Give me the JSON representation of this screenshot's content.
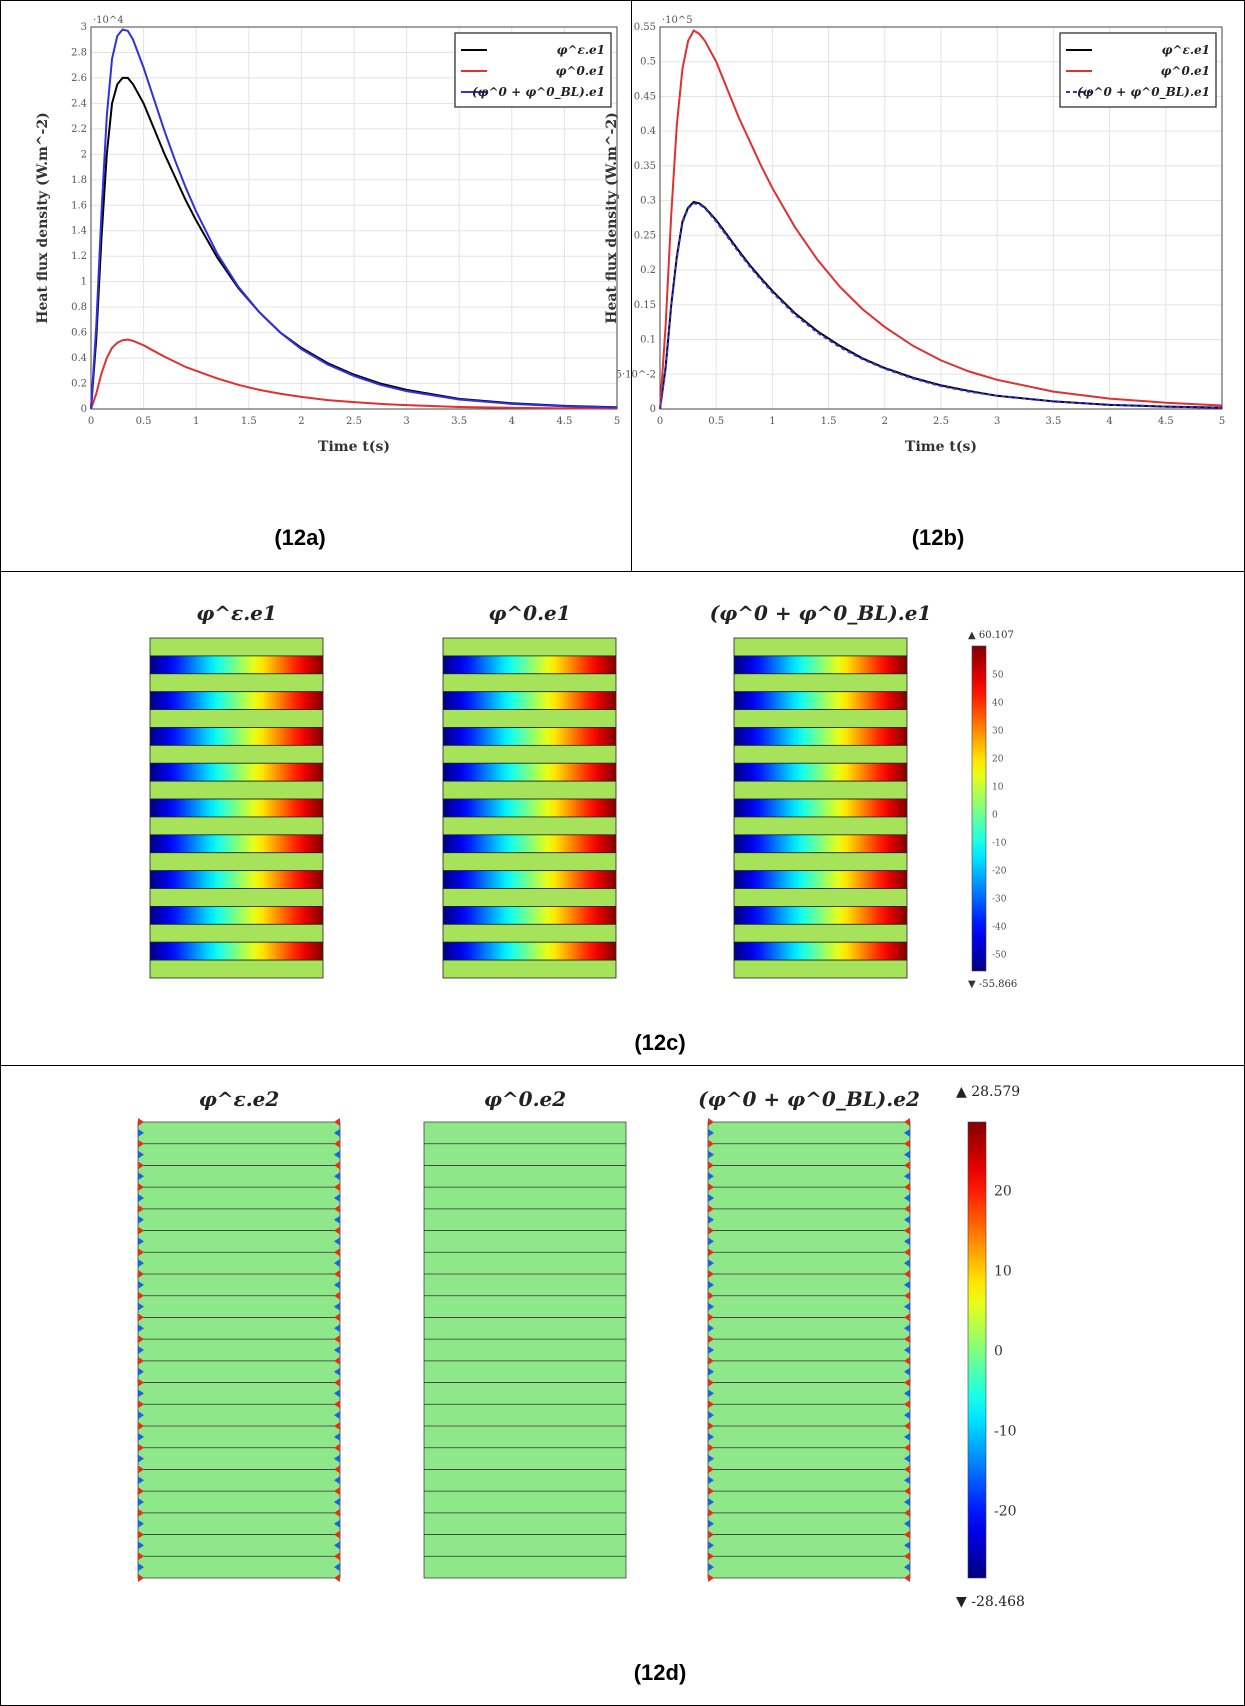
{
  "chart_data": [
    {
      "id": "12a",
      "type": "line",
      "caption": "(12a)",
      "xlabel": "Time t(s)",
      "ylabel": "Heat flux density (W.m^-2)",
      "y_multiplier": "·10^4",
      "xlim": [
        0,
        5
      ],
      "ylim": [
        0,
        3
      ],
      "x_ticks": [
        "0",
        "0.5",
        "1",
        "1.5",
        "2",
        "2.5",
        "3",
        "3.5",
        "4",
        "4.5",
        "5"
      ],
      "y_ticks": [
        "0",
        "0.2",
        "0.4",
        "0.6",
        "0.8",
        "1",
        "1.2",
        "1.4",
        "1.6",
        "1.8",
        "2",
        "2.2",
        "2.4",
        "2.6",
        "2.8",
        "3"
      ],
      "legend_position": "top-right",
      "grid": true,
      "x": [
        0,
        0.05,
        0.1,
        0.15,
        0.2,
        0.25,
        0.3,
        0.35,
        0.4,
        0.5,
        0.6,
        0.7,
        0.8,
        0.9,
        1.0,
        1.2,
        1.4,
        1.6,
        1.8,
        2.0,
        2.25,
        2.5,
        2.75,
        3.0,
        3.5,
        4.0,
        4.5,
        5.0
      ],
      "series": [
        {
          "name": "φ^ε.e1",
          "color": "#000000",
          "style": "solid",
          "values": [
            0,
            0.55,
            1.35,
            2.0,
            2.4,
            2.55,
            2.6,
            2.6,
            2.55,
            2.4,
            2.2,
            2.0,
            1.82,
            1.64,
            1.48,
            1.19,
            0.95,
            0.76,
            0.6,
            0.48,
            0.36,
            0.27,
            0.2,
            0.15,
            0.08,
            0.045,
            0.025,
            0.014
          ]
        },
        {
          "name": "φ^0.e1",
          "color": "#e03030",
          "style": "solid",
          "values": [
            0,
            0.12,
            0.28,
            0.4,
            0.48,
            0.52,
            0.54,
            0.545,
            0.535,
            0.5,
            0.455,
            0.41,
            0.37,
            0.33,
            0.3,
            0.24,
            0.19,
            0.15,
            0.12,
            0.095,
            0.07,
            0.054,
            0.04,
            0.03,
            0.016,
            0.009,
            0.005,
            0.003
          ]
        },
        {
          "name": "(φ^0 + φ^0_BL).e1",
          "color": "#3030e0",
          "style": "solid",
          "values": [
            0,
            0.65,
            1.55,
            2.3,
            2.75,
            2.93,
            2.98,
            2.97,
            2.9,
            2.68,
            2.43,
            2.18,
            1.95,
            1.74,
            1.55,
            1.22,
            0.96,
            0.76,
            0.6,
            0.47,
            0.35,
            0.26,
            0.19,
            0.14,
            0.075,
            0.04,
            0.022,
            0.012
          ]
        }
      ]
    },
    {
      "id": "12b",
      "type": "line",
      "caption": "(12b)",
      "xlabel": "Time t(s)",
      "ylabel": "Heat flux density (W.m^-2)",
      "y_multiplier": "·10^5",
      "xlim": [
        0,
        5
      ],
      "ylim": [
        0,
        0.55
      ],
      "x_ticks": [
        "0",
        "0.5",
        "1",
        "1.5",
        "2",
        "2.5",
        "3",
        "3.5",
        "4",
        "4.5",
        "5"
      ],
      "y_ticks": [
        "0",
        "5·10^-2",
        "0.1",
        "0.15",
        "0.2",
        "0.25",
        "0.3",
        "0.35",
        "0.4",
        "0.45",
        "0.5",
        "0.55"
      ],
      "legend_position": "top-right",
      "grid": true,
      "x": [
        0,
        0.05,
        0.1,
        0.15,
        0.2,
        0.25,
        0.3,
        0.35,
        0.4,
        0.5,
        0.6,
        0.7,
        0.8,
        0.9,
        1.0,
        1.2,
        1.4,
        1.6,
        1.8,
        2.0,
        2.25,
        2.5,
        2.75,
        3.0,
        3.5,
        4.0,
        4.5,
        5.0
      ],
      "series": [
        {
          "name": "φ^ε.e1",
          "color": "#000000",
          "style": "solid",
          "values": [
            0,
            0.06,
            0.15,
            0.22,
            0.27,
            0.29,
            0.298,
            0.296,
            0.29,
            0.272,
            0.25,
            0.228,
            0.207,
            0.188,
            0.17,
            0.138,
            0.112,
            0.091,
            0.073,
            0.059,
            0.045,
            0.034,
            0.026,
            0.019,
            0.011,
            0.006,
            0.0035,
            0.002
          ]
        },
        {
          "name": "φ^0.e1",
          "color": "#e03030",
          "style": "solid",
          "values": [
            0,
            0.12,
            0.28,
            0.41,
            0.49,
            0.53,
            0.545,
            0.54,
            0.53,
            0.5,
            0.46,
            0.42,
            0.385,
            0.35,
            0.318,
            0.262,
            0.215,
            0.176,
            0.144,
            0.118,
            0.091,
            0.07,
            0.054,
            0.042,
            0.025,
            0.015,
            0.009,
            0.005
          ]
        },
        {
          "name": "(φ^0 + φ^0_BL).e1",
          "color": "#3030e0",
          "style": "dashed",
          "values": [
            0,
            0.058,
            0.148,
            0.218,
            0.268,
            0.289,
            0.296,
            0.295,
            0.289,
            0.27,
            0.248,
            0.226,
            0.205,
            0.186,
            0.168,
            0.136,
            0.11,
            0.089,
            0.072,
            0.058,
            0.044,
            0.033,
            0.025,
            0.019,
            0.011,
            0.006,
            0.0035,
            0.002
          ]
        }
      ]
    },
    {
      "id": "12c",
      "type": "heatmap",
      "caption": "(12c)",
      "panels": [
        "φ^ε.e1",
        "φ^0.e1",
        "(φ^0 + φ^0_BL).e1"
      ],
      "colorbar": {
        "max_label": "▲ 60.107",
        "min_label": "▼ -55.866",
        "ticks": [
          "50",
          "40",
          "30",
          "20",
          "10",
          "0",
          "-10",
          "-20",
          "-30",
          "-40",
          "-50"
        ],
        "range": [
          -55.866,
          60.107
        ]
      }
    },
    {
      "id": "12d",
      "type": "heatmap",
      "caption": "(12d)",
      "panels": [
        "φ^ε.e2",
        "φ^0.e2",
        "(φ^0 + φ^0_BL).e2"
      ],
      "colorbar": {
        "max_label": "▲ 28.579",
        "min_label": "▼ -28.468",
        "ticks": [
          "20",
          "10",
          "0",
          "-10",
          "-20"
        ],
        "range": [
          -28.468,
          28.579
        ]
      }
    }
  ]
}
